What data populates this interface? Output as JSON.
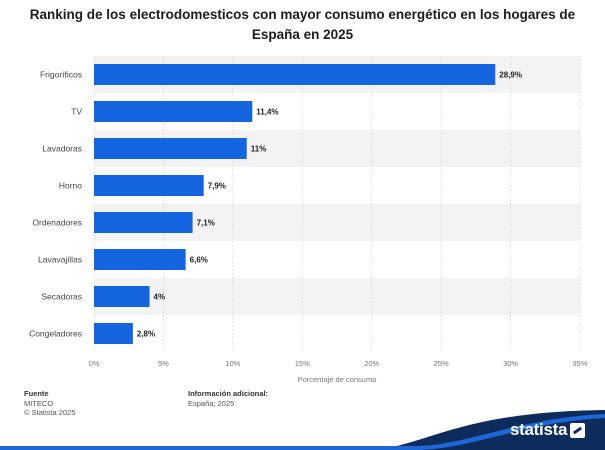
{
  "colors": {
    "bar": "#1565e0",
    "band": "#f3f3f3",
    "grid": "#cfcfcf",
    "brand_dark": "#0d2c5c",
    "brand_blue": "#1e67d8"
  },
  "chart_data": {
    "type": "bar",
    "orientation": "horizontal",
    "title": "Ranking de los electrodomesticos con mayor consumo energético en los hogares de España en 2025",
    "xlabel": "Porcentaje de consumo",
    "ylabel": "",
    "xlim": [
      0,
      35
    ],
    "ticks": [
      0,
      5,
      10,
      15,
      20,
      25,
      30,
      35
    ],
    "tick_labels": [
      "0%",
      "5%",
      "10%",
      "15%",
      "20%",
      "25%",
      "30%",
      "35%"
    ],
    "categories": [
      "Frigoríficos",
      "TV",
      "Lavadoras",
      "Horno",
      "Ordenadores",
      "Lavavajillas",
      "Secadoras",
      "Congeladores"
    ],
    "values": [
      28.9,
      11.4,
      11,
      7.9,
      7.1,
      6.6,
      4,
      2.8
    ],
    "value_labels": [
      "28,9%",
      "11,4%",
      "11%",
      "7,9%",
      "7,1%",
      "6,6%",
      "4%",
      "2,8%"
    ],
    "grid": true,
    "legend": "none"
  },
  "footer": {
    "source_heading": "Fuente",
    "source_lines": [
      "MITECO",
      "© Statista 2025"
    ],
    "info_heading": "Información adicional:",
    "info_lines": [
      "España; 2025"
    ]
  },
  "brand": {
    "name": "statista",
    "icon": "statista-logo-icon"
  }
}
